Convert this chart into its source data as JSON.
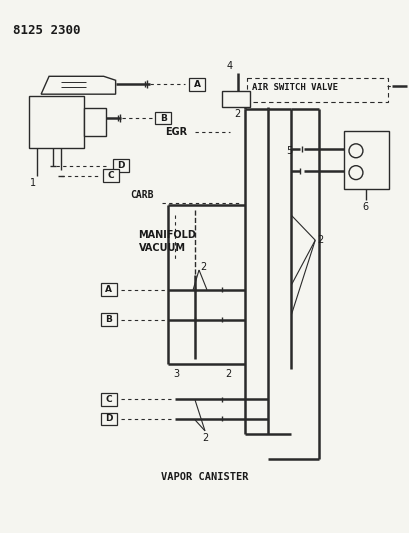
{
  "bg_color": "#f5f5f0",
  "line_color": "#2a2a2a",
  "text_color": "#1a1a1a",
  "part_num": "8125 2300",
  "labels": {
    "air_switch_valve": "AIR SWITCH VALVE",
    "egr": "EGR",
    "carb": "CARB",
    "manifold_vacuum_1": "MANIFOLD",
    "manifold_vacuum_2": "VACUUM",
    "vapor_canister": "VAPOR CANISTER"
  },
  "numbers": {
    "n1": "1",
    "n2": "2",
    "n3": "3",
    "n4": "4",
    "n5": "5",
    "n6": "6"
  }
}
